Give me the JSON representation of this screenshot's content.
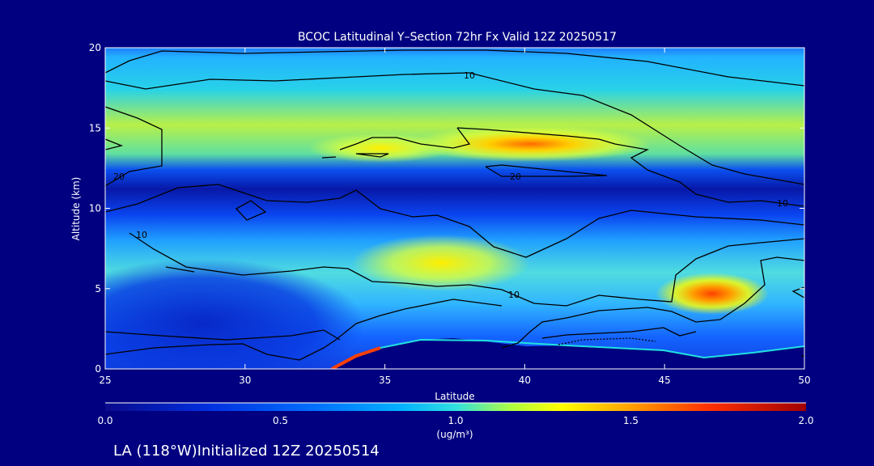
{
  "chart_data": {
    "type": "heatmap",
    "title": "BCOC Latitudinal Y–Section 72hr  Fx Valid 12Z 20250517",
    "xlabel": "Latitude",
    "ylabel": "Altitude (km)",
    "xlim": [
      25,
      50
    ],
    "ylim": [
      0,
      20
    ],
    "x_ticks": [
      "25",
      "30",
      "35",
      "40",
      "45",
      "50"
    ],
    "y_ticks": [
      "0",
      "5",
      "10",
      "15",
      "20"
    ],
    "colorbar": {
      "range": [
        0.0,
        2.0
      ],
      "tick_labels": [
        "0.0",
        "0.5",
        "1.0",
        "1.5",
        "2.0"
      ],
      "unit": "(ug/m³)",
      "colors": [
        "#0a0a8c",
        "#0038ff",
        "#00a6ff",
        "#22e6e6",
        "#b8ff40",
        "#ffff00",
        "#ffa000",
        "#ff3000",
        "#b00000"
      ]
    },
    "contour_labels": [
      "10",
      "20",
      "20",
      "10",
      "10",
      "10"
    ],
    "features": [
      {
        "lat": 40,
        "alt": 14.0,
        "value": 1.35
      },
      {
        "lat": 37,
        "alt": 6.3,
        "value": 1.05
      },
      {
        "lat": 47,
        "alt": 4.6,
        "value": 1.4
      },
      {
        "lat": 34.5,
        "alt": 0.5,
        "value": 1.6
      }
    ],
    "footer": "LA (118°W)Initialized 12Z 20250514"
  }
}
